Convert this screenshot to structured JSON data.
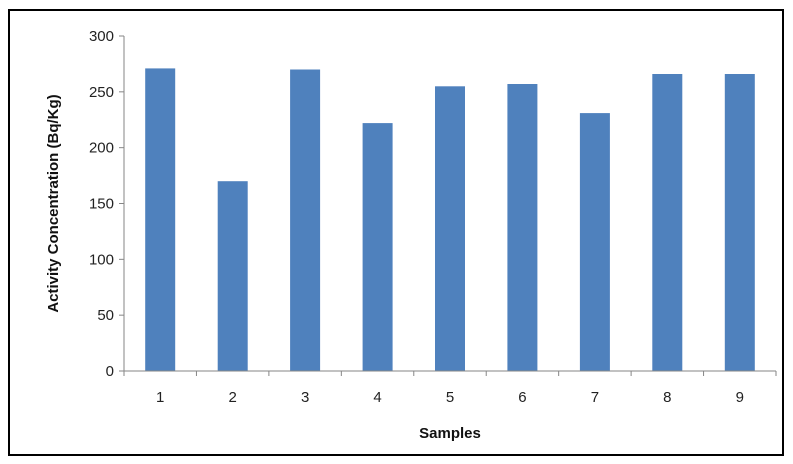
{
  "chart_data": {
    "type": "bar",
    "title": "",
    "xlabel": "Samples",
    "ylabel": "Activity Concentration (Bq/Kg)",
    "categories": [
      "1",
      "2",
      "3",
      "4",
      "5",
      "6",
      "7",
      "8",
      "9"
    ],
    "values": [
      271,
      170,
      270,
      222,
      255,
      257,
      231,
      266,
      266
    ],
    "ylim": [
      0,
      300
    ],
    "yticks": [
      0,
      50,
      100,
      150,
      200,
      250,
      300
    ],
    "grid": false,
    "legend": "none",
    "bar_color": "#4F81BD",
    "axis_color": "#868686"
  }
}
